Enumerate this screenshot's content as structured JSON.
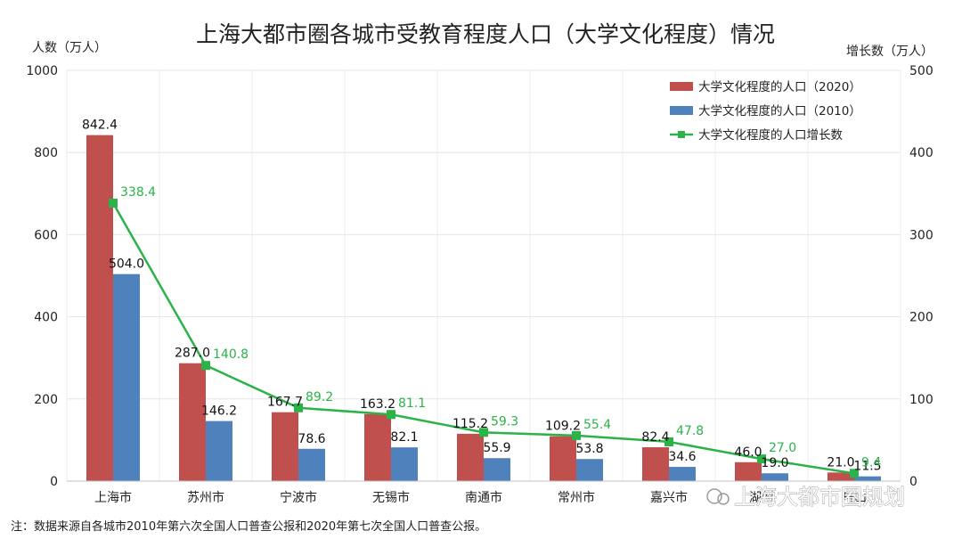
{
  "chart_data": {
    "type": "bar",
    "title": "上海大都市圈各城市受教育程度人口（大学文化程度）情况",
    "ylabel_left": "人数（万人）",
    "ylabel_right": "增长数（万人）",
    "ylim_left": [
      0,
      1000
    ],
    "ylim_right": [
      0,
      500
    ],
    "yticks_left": [
      0,
      200,
      400,
      600,
      800,
      1000
    ],
    "yticks_right": [
      0,
      100,
      200,
      300,
      400,
      500
    ],
    "categories": [
      "上海市",
      "苏州市",
      "宁波市",
      "无锡市",
      "南通市",
      "常州市",
      "嘉兴市",
      "湖州",
      "舟山"
    ],
    "series": [
      {
        "name": "大学文化程度的人口（2020）",
        "kind": "bar",
        "axis": "left",
        "color": "#C0504D",
        "values": [
          842.4,
          287.0,
          167.7,
          163.2,
          115.2,
          109.2,
          82.4,
          46.0,
          21.0
        ]
      },
      {
        "name": "大学文化程度的人口（2010）",
        "kind": "bar",
        "axis": "left",
        "color": "#4F81BD",
        "values": [
          504.0,
          146.2,
          78.6,
          82.1,
          55.9,
          53.8,
          34.6,
          19.0,
          11.5
        ]
      },
      {
        "name": "大学文化程度的人口增长数",
        "kind": "line",
        "axis": "right",
        "color": "#2BB34A",
        "values": [
          338.4,
          140.8,
          89.2,
          81.1,
          59.3,
          55.4,
          47.8,
          27.0,
          9.4
        ]
      }
    ],
    "legend_position": "top-right",
    "grid": true
  },
  "note": "注：数据来源自各城市2010年第六次全国人口普查公报和2020年第七次全国人口普查公报。",
  "watermark": "上海大都市圈规划"
}
